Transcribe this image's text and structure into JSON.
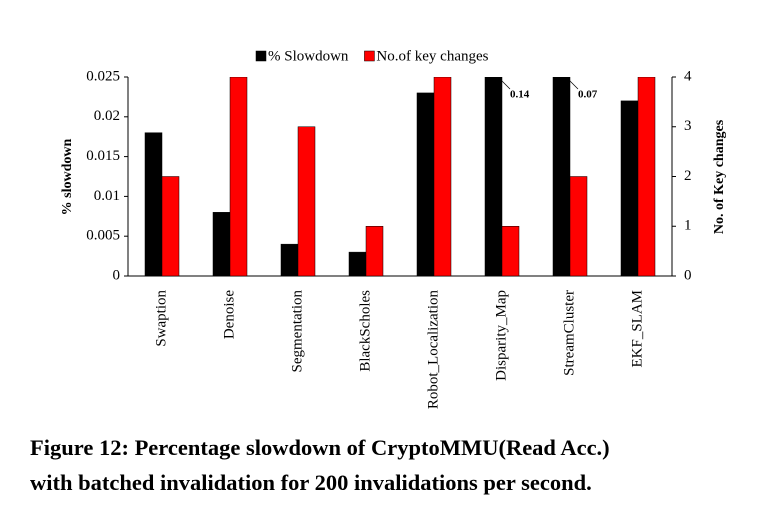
{
  "chart_data": {
    "type": "bar",
    "caption": [
      "Figure 12: Percentage slowdown of CryptoMMU(Read Acc.)",
      "with batched invalidation for 200 invalidations per second."
    ],
    "ylabel": "% slowdown",
    "y2label": "No. of Key changes",
    "categories": [
      "Swaption",
      "Denoise",
      "Segmentation",
      "BlackScholes",
      "Robot_Localization",
      "Disparity_Map",
      "StreamCluster",
      "EKF_SLAM"
    ],
    "series": [
      {
        "name": "% Slowdown",
        "color": "#000000",
        "values": [
          0.018,
          0.008,
          0.004,
          0.003,
          0.023,
          0.14,
          0.07,
          0.022
        ]
      },
      {
        "name": "No.of key changes",
        "color": "#ff0000",
        "axis": "y2",
        "values": [
          2,
          4,
          3,
          1,
          4,
          1,
          2,
          4
        ]
      }
    ],
    "ylim": [
      0,
      0.025
    ],
    "yticks": [
      0,
      0.005,
      0.01,
      0.015,
      0.02,
      0.025
    ],
    "y2lim": [
      0,
      4
    ],
    "y2ticks": [
      0,
      1,
      2,
      3,
      4
    ],
    "grid": false,
    "legend": "top"
  }
}
